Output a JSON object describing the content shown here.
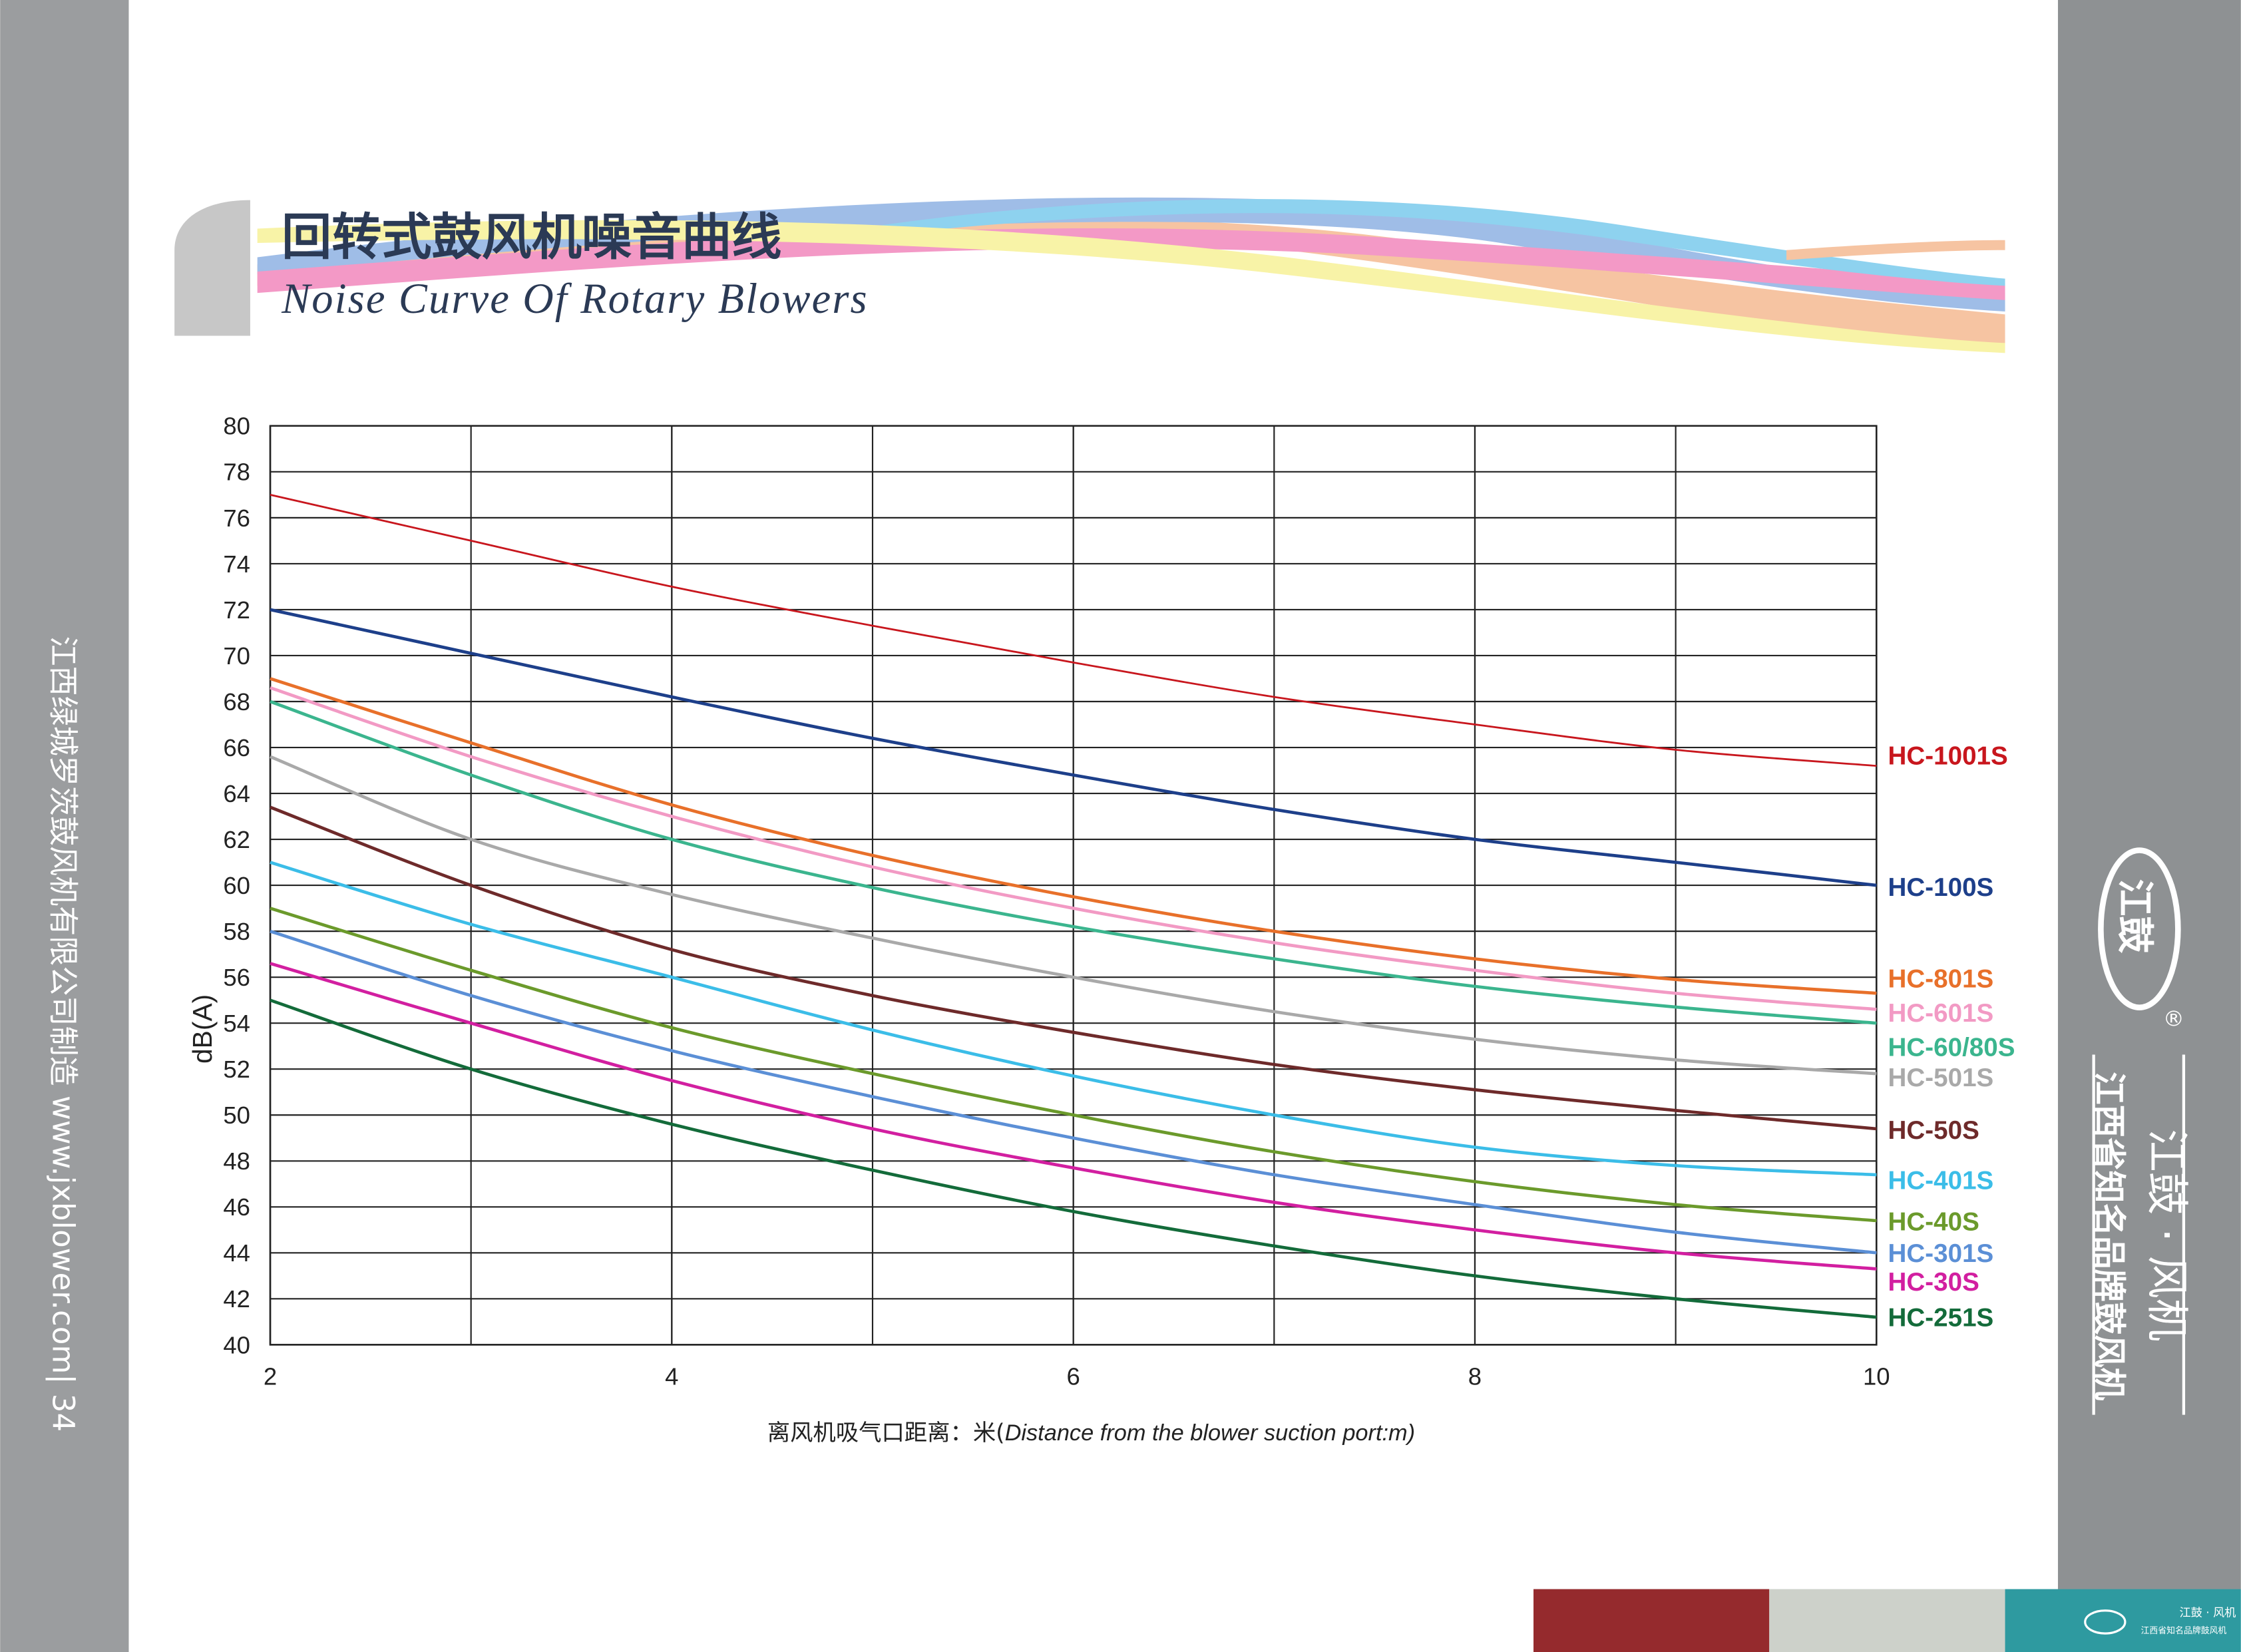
{
  "header": {
    "title": "回转式鼓风机噪音曲线",
    "subtitle": "Noise Curve Of Rotary Blowers"
  },
  "sidebar": {
    "left_text": "江西绿城罗茨鼓风机有限公司制造  www.jxblower.com| 34",
    "logo": "江鼓",
    "brand": "江鼓 · 风机",
    "slogan": "江西省知名品牌鼓风机",
    "registered": "®"
  },
  "footer": {
    "brand": "江鼓 · 风机",
    "slogan": "江西省知名品牌鼓风机"
  },
  "chart_data": {
    "type": "line",
    "y_label": "dB(A)",
    "x_label_cn": "离风机吸气口距离：米(",
    "x_label_en": "Distance from the blower suction port:m)",
    "x": [
      2,
      3,
      4,
      5,
      6,
      7,
      8,
      9,
      10
    ],
    "xlim": [
      2,
      10
    ],
    "xticks": [
      2,
      4,
      6,
      8,
      10
    ],
    "ylim": [
      40,
      80
    ],
    "yticks": [
      40,
      42,
      44,
      46,
      48,
      50,
      52,
      54,
      56,
      58,
      60,
      62,
      64,
      66,
      68,
      70,
      72,
      74,
      76,
      78,
      80
    ],
    "grid": true,
    "series": [
      {
        "name": "HC-1001S",
        "color": "#c8161d",
        "values": [
          77,
          75,
          73,
          71.3,
          69.7,
          68.2,
          67,
          65.9,
          65.2
        ]
      },
      {
        "name": "HC-100S",
        "color": "#1d3f8a",
        "values": [
          72,
          70.1,
          68.2,
          66.4,
          64.8,
          63.3,
          62,
          61,
          60
        ]
      },
      {
        "name": "HC-801S",
        "color": "#e8702a",
        "values": [
          69,
          66.2,
          63.5,
          61.3,
          59.5,
          58,
          56.8,
          55.9,
          55.3
        ]
      },
      {
        "name": "HC-601S",
        "color": "#f29ac4",
        "values": [
          68.6,
          65.6,
          63,
          60.8,
          59,
          57.5,
          56.3,
          55.3,
          54.6
        ]
      },
      {
        "name": "HC-60/80S",
        "color": "#3bb58e",
        "values": [
          68,
          64.8,
          62,
          59.9,
          58.2,
          56.8,
          55.6,
          54.7,
          54
        ]
      },
      {
        "name": "HC-501S",
        "color": "#a9a9a9",
        "values": [
          65.6,
          62,
          59.6,
          57.7,
          56,
          54.5,
          53.3,
          52.4,
          51.8
        ]
      },
      {
        "name": "HC-50S",
        "color": "#6e2a2a",
        "values": [
          63.4,
          60,
          57.2,
          55.2,
          53.6,
          52.2,
          51.1,
          50.2,
          49.4
        ]
      },
      {
        "name": "HC-401S",
        "color": "#3bbde8",
        "values": [
          61,
          58.3,
          56,
          53.7,
          51.7,
          50,
          48.6,
          47.8,
          47.4
        ]
      },
      {
        "name": "HC-40S",
        "color": "#6b9a2b",
        "values": [
          59,
          56.3,
          53.8,
          51.8,
          50,
          48.4,
          47.1,
          46.1,
          45.4
        ]
      },
      {
        "name": "HC-301S",
        "color": "#5b8fd6",
        "values": [
          58,
          55.2,
          52.8,
          50.8,
          49,
          47.4,
          46.1,
          44.9,
          44
        ]
      },
      {
        "name": "HC-30S",
        "color": "#d21fa0",
        "values": [
          56.6,
          54,
          51.5,
          49.4,
          47.7,
          46.2,
          45,
          44,
          43.3
        ]
      },
      {
        "name": "HC-251S",
        "color": "#136b3a",
        "values": [
          55,
          52,
          49.6,
          47.6,
          45.8,
          44.3,
          43,
          42,
          41.2
        ]
      }
    ]
  }
}
